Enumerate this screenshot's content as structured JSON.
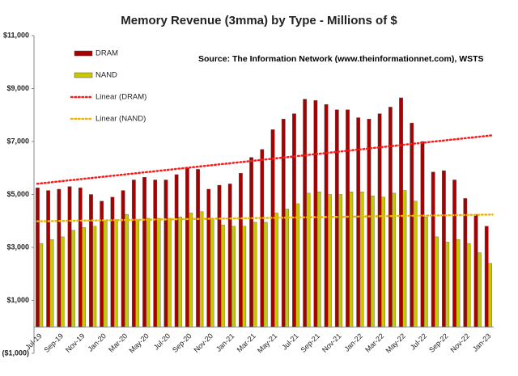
{
  "chart_data": {
    "type": "bar",
    "title": "Memory Revenue (3mma) by Type - Millions of $",
    "annotation": "Source: The Information Network (www.theinformationnet.com), WSTS",
    "categories": [
      "Jul-19",
      null,
      "Sep-19",
      null,
      "Nov-19",
      null,
      "Jan-20",
      null,
      "Mar-20",
      null,
      "May-20",
      null,
      "Jul-20",
      null,
      "Sep-20",
      null,
      "Nov-20",
      null,
      "Jan-21",
      null,
      "Mar-21",
      null,
      "May-21",
      null,
      "Jul-21",
      null,
      "Sep-21",
      null,
      "Nov-21",
      null,
      "Jan-22",
      null,
      "Mar-22",
      null,
      "May-22",
      null,
      "Jul-22",
      null,
      "Sep-22",
      null,
      "Nov-22",
      null,
      "Jan-23"
    ],
    "series": [
      {
        "name": "DRAM",
        "color": "#a80000",
        "trendline": true,
        "trendline_name": "Linear (DRAM)",
        "trendline_color": "#ff1a1a",
        "values": [
          5250,
          5150,
          5200,
          5300,
          5250,
          5000,
          4750,
          4900,
          5150,
          5550,
          5650,
          5550,
          5550,
          5750,
          6000,
          5950,
          5200,
          5350,
          5400,
          5800,
          6400,
          6700,
          7450,
          7850,
          8050,
          8600,
          8550,
          8400,
          8200,
          8200,
          7900,
          7850,
          8050,
          8300,
          8650,
          7700,
          7000,
          5850,
          5900,
          5550,
          4850,
          4250,
          3800
        ]
      },
      {
        "name": "NAND",
        "color": "#c8c800",
        "trendline": true,
        "trendline_name": "Linear (NAND)",
        "trendline_color": "#f0b400",
        "values": [
          3150,
          3300,
          3400,
          3650,
          3750,
          3800,
          4000,
          4050,
          4250,
          4050,
          4100,
          4100,
          4100,
          4150,
          4300,
          4350,
          4100,
          3850,
          3800,
          3800,
          3950,
          3950,
          4300,
          4450,
          4650,
          5050,
          5100,
          5000,
          5000,
          5100,
          5100,
          4950,
          4900,
          5050,
          5150,
          4750,
          4150,
          3400,
          3200,
          3300,
          3150,
          2800,
          2400
        ]
      }
    ],
    "ylim": [
      -1000,
      11000
    ],
    "yticks": [
      {
        "value": -1000,
        "label": "($1,000)"
      },
      {
        "value": 1000,
        "label": "$1,000"
      },
      {
        "value": 3000,
        "label": "$3,000"
      },
      {
        "value": 5000,
        "label": "$5,000"
      },
      {
        "value": 7000,
        "label": "$7,000"
      },
      {
        "value": 9000,
        "label": "$9,000"
      },
      {
        "value": 11000,
        "label": "$11,000"
      }
    ],
    "negative_tick_color": "#c00000",
    "grid": false
  }
}
